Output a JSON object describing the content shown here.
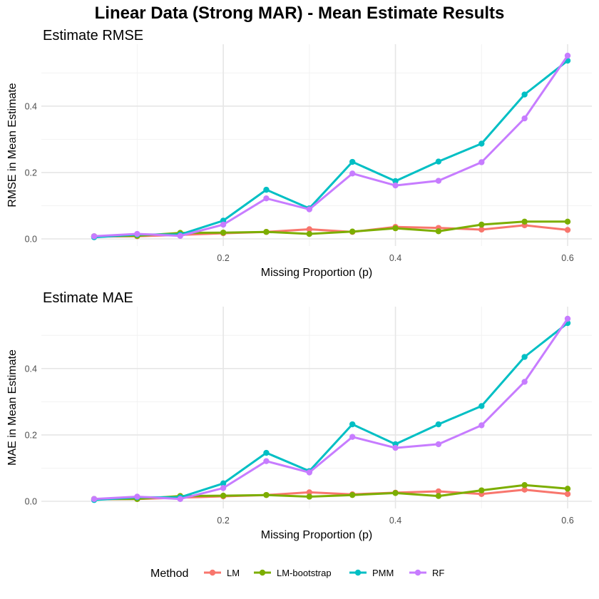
{
  "title": "Linear Data (Strong MAR) - Mean Estimate Results",
  "legend": {
    "title": "Method",
    "position": "bottom"
  },
  "colors": {
    "LM": "#F8766D",
    "LM-bootstrap": "#7CAE00",
    "PMM": "#00BFC4",
    "RF": "#C77CFF",
    "grid_major": "#e6e6e6",
    "grid_minor": "#f2f2f2"
  },
  "chart_data": [
    {
      "type": "line",
      "title": "Estimate RMSE",
      "xlabel": "Missing Proportion (p)",
      "ylabel": "RMSE in Mean Estimate",
      "xlim": [
        0.05,
        0.6
      ],
      "ylim": [
        0,
        0.55
      ],
      "xticks": [
        "0.2",
        "0.4",
        "0.6"
      ],
      "xtick_values": [
        0.2,
        0.4,
        0.6
      ],
      "yticks": [
        "0.0",
        "0.2",
        "0.4"
      ],
      "ytick_values": [
        0.0,
        0.2,
        0.4
      ],
      "grid": true,
      "x": [
        0.05,
        0.1,
        0.15,
        0.2,
        0.25,
        0.3,
        0.35,
        0.4,
        0.45,
        0.5,
        0.55,
        0.6
      ],
      "series": [
        {
          "name": "LM",
          "values": [
            0.007,
            0.008,
            0.012,
            0.017,
            0.021,
            0.029,
            0.021,
            0.036,
            0.033,
            0.028,
            0.041,
            0.027
          ]
        },
        {
          "name": "LM-bootstrap",
          "values": [
            0.008,
            0.009,
            0.018,
            0.019,
            0.021,
            0.015,
            0.022,
            0.032,
            0.023,
            0.043,
            0.052,
            0.052
          ]
        },
        {
          "name": "PMM",
          "values": [
            0.005,
            0.013,
            0.013,
            0.055,
            0.148,
            0.092,
            0.232,
            0.174,
            0.233,
            0.287,
            0.435,
            0.537
          ]
        },
        {
          "name": "RF",
          "values": [
            0.008,
            0.015,
            0.009,
            0.043,
            0.122,
            0.089,
            0.197,
            0.161,
            0.175,
            0.231,
            0.363,
            0.552
          ]
        }
      ]
    },
    {
      "type": "line",
      "title": "Estimate MAE",
      "xlabel": "Missing Proportion (p)",
      "ylabel": "MAE in Mean Estimate",
      "xlim": [
        0.05,
        0.6
      ],
      "ylim": [
        0,
        0.55
      ],
      "xticks": [
        "0.2",
        "0.4",
        "0.6"
      ],
      "xtick_values": [
        0.2,
        0.4,
        0.6
      ],
      "yticks": [
        "0.0",
        "0.2",
        "0.4"
      ],
      "ytick_values": [
        0.0,
        0.2,
        0.4
      ],
      "grid": true,
      "x": [
        0.05,
        0.1,
        0.15,
        0.2,
        0.25,
        0.3,
        0.35,
        0.4,
        0.45,
        0.5,
        0.55,
        0.6
      ],
      "series": [
        {
          "name": "LM",
          "values": [
            0.006,
            0.007,
            0.011,
            0.015,
            0.019,
            0.027,
            0.021,
            0.026,
            0.03,
            0.022,
            0.035,
            0.022
          ]
        },
        {
          "name": "LM-bootstrap",
          "values": [
            0.007,
            0.007,
            0.016,
            0.017,
            0.019,
            0.014,
            0.019,
            0.025,
            0.016,
            0.033,
            0.049,
            0.038
          ]
        },
        {
          "name": "PMM",
          "values": [
            0.004,
            0.012,
            0.012,
            0.054,
            0.146,
            0.091,
            0.232,
            0.172,
            0.232,
            0.287,
            0.435,
            0.537
          ]
        },
        {
          "name": "RF",
          "values": [
            0.007,
            0.014,
            0.007,
            0.04,
            0.121,
            0.087,
            0.194,
            0.161,
            0.172,
            0.229,
            0.36,
            0.55
          ]
        }
      ]
    }
  ]
}
